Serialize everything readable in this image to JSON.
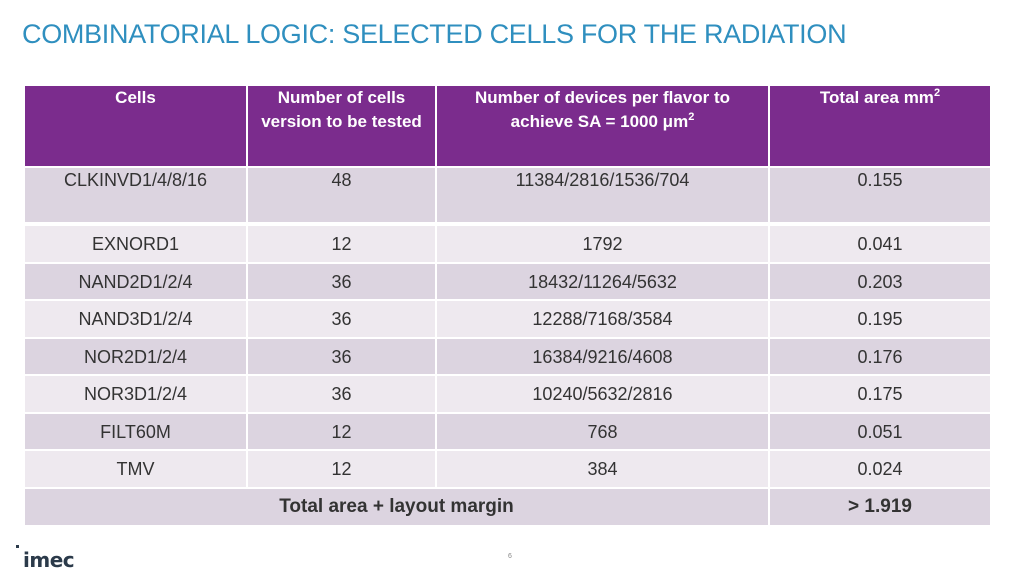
{
  "colors": {
    "title": "#2f8fbf",
    "header": "#7b2c8d",
    "row_odd": "#dcd4e0",
    "row_even": "#eee9ef"
  },
  "title": "COMBINATORIAL LOGIC: SELECTED CELLS FOR THE RADIATION",
  "table": {
    "headers": {
      "cells": "Cells",
      "count": "Number of cells version to be tested",
      "devices_main": "Number of devices per flavor to achieve SA = 1000 μm",
      "devices_sup": "2",
      "area_main": "Total area mm",
      "area_sup": "2"
    },
    "rows": [
      {
        "cell": "CLKINVD1/4/8/16",
        "count": "48",
        "devices": "11384/2816/1536/704",
        "area": "0.155"
      },
      {
        "cell": "EXNORD1",
        "count": "12",
        "devices": "1792",
        "area": "0.041"
      },
      {
        "cell": "NAND2D1/2/4",
        "count": "36",
        "devices": "18432/11264/5632",
        "area": "0.203"
      },
      {
        "cell": "NAND3D1/2/4",
        "count": "36",
        "devices": "12288/7168/3584",
        "area": "0.195"
      },
      {
        "cell": "NOR2D1/2/4",
        "count": "36",
        "devices": "16384/9216/4608",
        "area": "0.176"
      },
      {
        "cell": "NOR3D1/2/4",
        "count": "36",
        "devices": "10240/5632/2816",
        "area": "0.175"
      },
      {
        "cell": "FILT60M",
        "count": "12",
        "devices": "768",
        "area": "0.051"
      },
      {
        "cell": "TMV",
        "count": "12",
        "devices": "384",
        "area": "0.024"
      }
    ],
    "total": {
      "label": "Total area + layout margin",
      "value": "> 1.919"
    }
  },
  "footer": {
    "logo": "imec",
    "page_number": "6"
  }
}
